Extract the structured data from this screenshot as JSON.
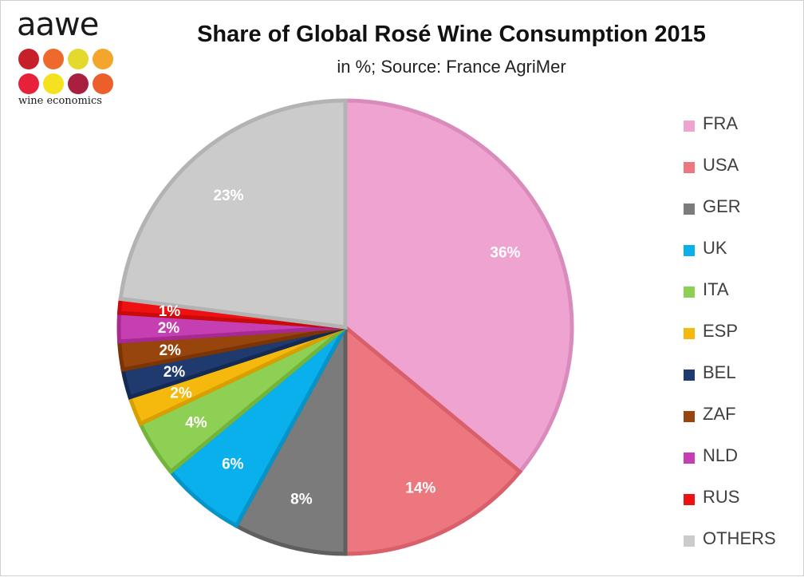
{
  "logo": {
    "wordmark": "aawe",
    "tagline": "wine economics",
    "dot_colors": [
      "#c8202a",
      "#ee6a2c",
      "#e4d92d",
      "#f3a62b",
      "#e8213a",
      "#f5e21f",
      "#a81f3f",
      "#ec5e2b"
    ]
  },
  "chart_data": {
    "type": "pie",
    "title": "Share of Global Rosé Wine Consumption 2015",
    "subtitle": "in %; Source: France AgriMer",
    "start_angle_deg": 0,
    "direction": "clockwise",
    "legend_position": "right",
    "slices": [
      {
        "label": "FRA",
        "value": 36,
        "value_label": "36%",
        "color": "#eea3d0",
        "border": "#d98cbb"
      },
      {
        "label": "USA",
        "value": 14,
        "value_label": "14%",
        "color": "#ed777f",
        "border": "#d9606a"
      },
      {
        "label": "GER",
        "value": 8,
        "value_label": "8%",
        "color": "#7b7b7b",
        "border": "#5f5f5f"
      },
      {
        "label": "UK",
        "value": 6,
        "value_label": "6%",
        "color": "#09b0ec",
        "border": "#0594c8"
      },
      {
        "label": "ITA",
        "value": 4,
        "value_label": "4%",
        "color": "#8ed053",
        "border": "#73b53b"
      },
      {
        "label": "ESP",
        "value": 2,
        "value_label": "2%",
        "color": "#f5b90d",
        "border": "#d79f00"
      },
      {
        "label": "BEL",
        "value": 2,
        "value_label": "2%",
        "color": "#1f3a6e",
        "border": "#142a55"
      },
      {
        "label": "ZAF",
        "value": 2,
        "value_label": "2%",
        "color": "#98450d",
        "border": "#7a3406"
      },
      {
        "label": "NLD",
        "value": 2,
        "value_label": "2%",
        "color": "#c63fb2",
        "border": "#a72a94"
      },
      {
        "label": "RUS",
        "value": 1,
        "value_label": "1%",
        "color": "#ef1111",
        "border": "#c80a0a"
      },
      {
        "label": "OTHERS",
        "value": 23,
        "value_label": "23%",
        "color": "#cbcbcb",
        "border": "#b3b3b3"
      }
    ]
  }
}
